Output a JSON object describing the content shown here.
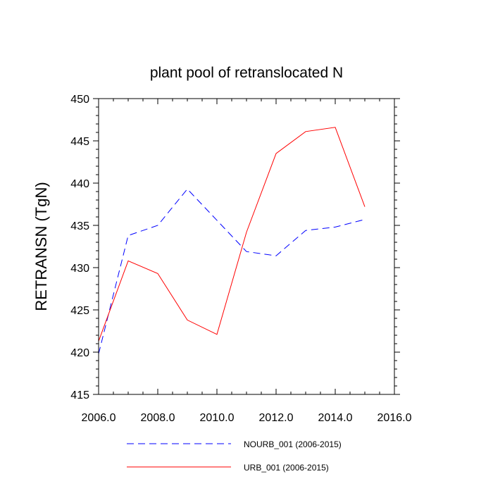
{
  "chart_data": {
    "type": "line",
    "title": "plant pool of retranslocated N",
    "xlabel": "",
    "ylabel": "RETRANSN  (TgN)",
    "xlim": [
      2006,
      2016
    ],
    "ylim": [
      415,
      450
    ],
    "x_ticks": [
      2006,
      2008,
      2010,
      2012,
      2014,
      2016
    ],
    "x_tick_labels": [
      "2006.0",
      "2008.0",
      "2010.0",
      "2012.0",
      "2014.0",
      "2016.0"
    ],
    "y_ticks": [
      415,
      420,
      425,
      430,
      435,
      440,
      445,
      450
    ],
    "y_tick_labels": [
      "415",
      "420",
      "425",
      "430",
      "435",
      "440",
      "445",
      "450"
    ],
    "x": [
      2006,
      2007,
      2008,
      2009,
      2010,
      2011,
      2012,
      2013,
      2014,
      2015
    ],
    "series": [
      {
        "name": "NOURB_001 (2006-2015)",
        "color": "#0000ff",
        "dash": "dashed",
        "values": [
          419.8,
          433.8,
          435.0,
          439.3,
          435.6,
          431.9,
          431.4,
          434.4,
          434.8,
          435.7
        ]
      },
      {
        "name": "URB_001 (2006-2015)",
        "color": "#ff0000",
        "dash": "solid",
        "values": [
          421.3,
          430.8,
          429.3,
          423.8,
          422.1,
          434.2,
          443.5,
          446.1,
          446.6,
          437.2
        ]
      }
    ],
    "legend_position": "bottom"
  }
}
